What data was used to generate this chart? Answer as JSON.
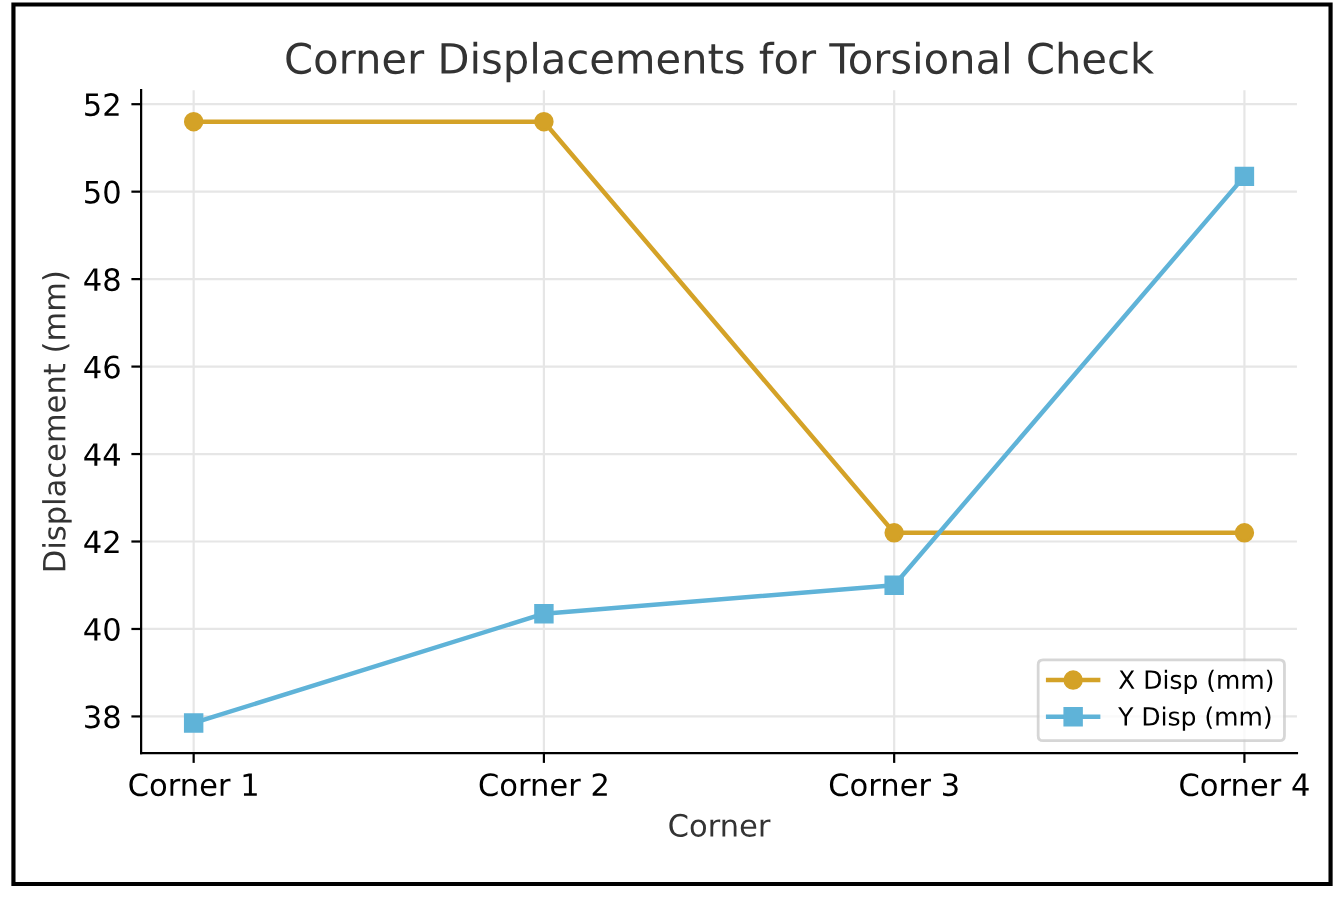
{
  "chart_data": {
    "type": "line",
    "title": "Corner Displacements for Torsional Check",
    "xlabel": "Corner",
    "ylabel": "Displacement (mm)",
    "categories": [
      "Corner 1",
      "Corner 2",
      "Corner 3",
      "Corner 4"
    ],
    "series": [
      {
        "name": "X Disp (mm)",
        "color": "#d4a227",
        "marker": "circle",
        "values": [
          51.6,
          51.6,
          42.2,
          42.2
        ]
      },
      {
        "name": "Y Disp (mm)",
        "color": "#5fb3d8",
        "marker": "square",
        "values": [
          37.85,
          40.35,
          41.0,
          50.35
        ]
      }
    ],
    "ylim": [
      37.16,
      52.32
    ],
    "yticks": [
      38,
      40,
      42,
      44,
      46,
      48,
      50,
      52
    ],
    "grid": true,
    "legend": "lower right",
    "line_style": "solid"
  }
}
